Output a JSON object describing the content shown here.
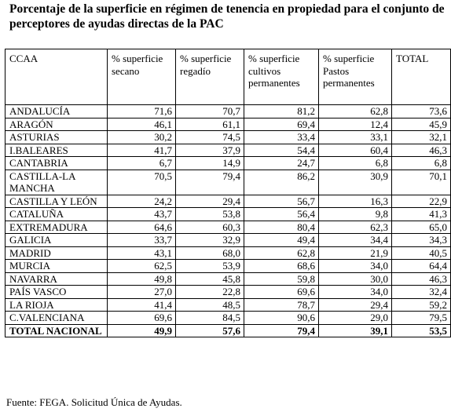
{
  "title": "Porcentaje de la superficie en régimen de tenencia en propiedad para el conjunto de perceptores de ayudas directas de la PAC",
  "headers": [
    "CCAA",
    "% superficie secano",
    "% superficie regadío",
    "% superficie cultivos permanentes",
    "% superficie Pastos permanentes",
    "TOTAL"
  ],
  "rows": [
    [
      "ANDALUCÍA",
      "71,6",
      "70,7",
      "81,2",
      "62,8",
      "73,6"
    ],
    [
      "ARAGÓN",
      "46,1",
      "61,1",
      "69,4",
      "12,4",
      "45,9"
    ],
    [
      "ASTURIAS",
      "30,2",
      "74,5",
      "33,4",
      "33,1",
      "32,1"
    ],
    [
      "I.BALEARES",
      "41,7",
      "37,9",
      "54,4",
      "60,4",
      "46,3"
    ],
    [
      "CANTABRIA",
      "6,7",
      "14,9",
      "24,7",
      "6,8",
      "6,8"
    ],
    [
      "CASTILLA-LA MANCHA",
      "70,5",
      "79,4",
      "86,2",
      "30,9",
      "70,1"
    ],
    [
      "CASTILLA Y LEÓN",
      "24,2",
      "29,4",
      "56,7",
      "16,3",
      "22,9"
    ],
    [
      "CATALUÑA",
      "43,7",
      "53,8",
      "56,4",
      "9,8",
      "41,3"
    ],
    [
      "EXTREMADURA",
      "64,6",
      "60,3",
      "80,4",
      "62,3",
      "65,0"
    ],
    [
      "GALICIA",
      "33,7",
      "32,9",
      "49,4",
      "34,4",
      "34,3"
    ],
    [
      "MADRID",
      "43,1",
      "68,0",
      "62,8",
      "21,9",
      "40,5"
    ],
    [
      "MURCIA",
      "62,5",
      "53,9",
      "68,6",
      "34,0",
      "64,4"
    ],
    [
      "NAVARRA",
      "49,8",
      "45,8",
      "59,8",
      "30,0",
      "46,3"
    ],
    [
      "PAÍS VASCO",
      "27,0",
      "22,8",
      "69,6",
      "34,0",
      "32,4"
    ],
    [
      "LA RIOJA",
      "41,4",
      "48,5",
      "78,7",
      "29,4",
      "59,2"
    ],
    [
      "C.VALENCIANA",
      "69,6",
      "84,5",
      "90,6",
      "29,0",
      "79,5"
    ]
  ],
  "total_row": [
    "TOTAL NACIONAL",
    "49,9",
    "57,6",
    "79,4",
    "39,1",
    "53,5"
  ],
  "source": "Fuente: FEGA. Solicitud Única de Ayudas."
}
